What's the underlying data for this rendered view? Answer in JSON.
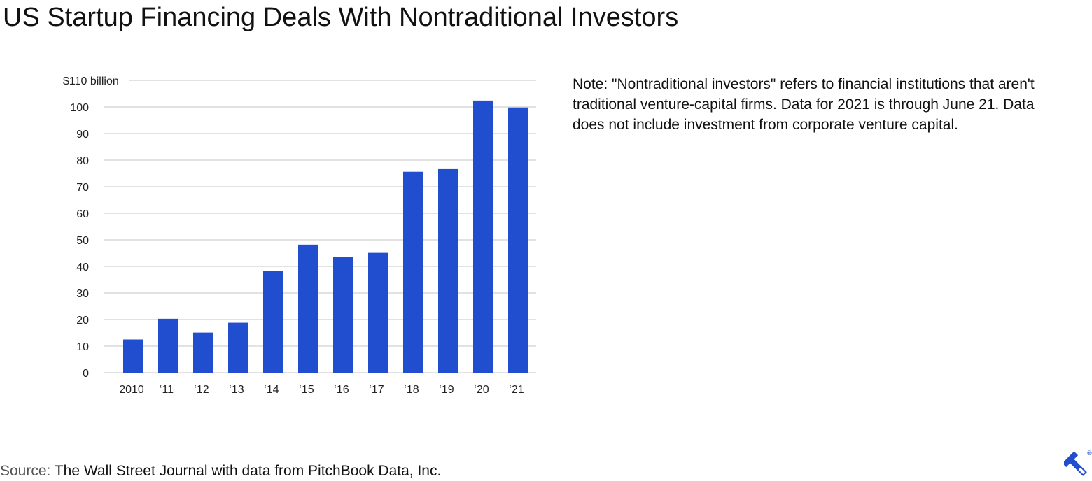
{
  "header": {
    "title": "US Startup Financing Deals With Nontraditional Investors"
  },
  "note": {
    "text": "Note: \"Nontraditional investors\" refers to financial institutions that aren't traditional venture-capital firms. Data for 2021 is through June 21. Data does not include investment from corporate venture capital."
  },
  "source": {
    "label": "Source:",
    "text": "The Wall Street Journal with data from PitchBook Data, Inc."
  },
  "logo": {
    "icon": "toptal-logo-icon",
    "mark": "®"
  },
  "colors": {
    "bar": "#214ecf",
    "grid": "#d9d9d9",
    "logo": "#214ecf"
  },
  "chart_data": {
    "type": "bar",
    "title": "",
    "xlabel": "",
    "ylabel": "",
    "categories": [
      "2010",
      "‘11",
      "‘12",
      "‘13",
      "‘14",
      "‘15",
      "‘16",
      "‘17",
      "‘18",
      "‘19",
      "‘20",
      "‘21"
    ],
    "values": [
      12.5,
      20.3,
      15.1,
      18.8,
      38.2,
      48.2,
      43.5,
      45.1,
      75.6,
      76.6,
      102.4,
      99.8
    ],
    "ylim": [
      0,
      110
    ],
    "yticks": [
      0,
      10,
      20,
      30,
      40,
      50,
      60,
      70,
      80,
      90,
      100,
      110
    ],
    "ytick_labels": [
      "0",
      "10",
      "20",
      "30",
      "40",
      "50",
      "60",
      "70",
      "80",
      "90",
      "100",
      "$110 billion"
    ],
    "grid": true,
    "legend": "none"
  }
}
